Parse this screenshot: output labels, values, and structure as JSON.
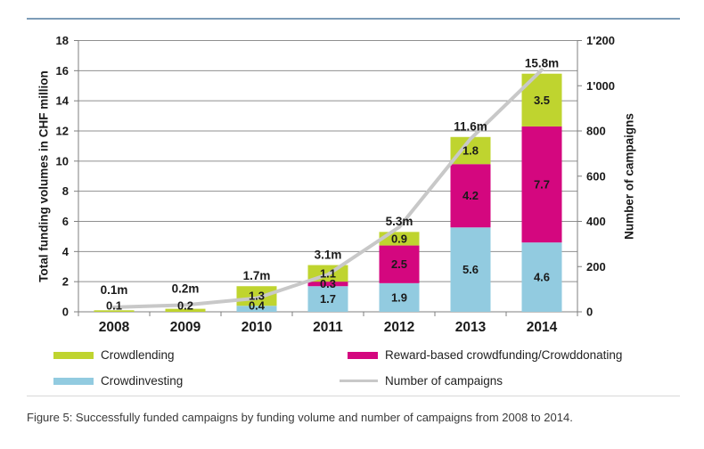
{
  "chart_data": {
    "type": "bar",
    "subtype": "stacked-columns-with-line-overlay",
    "categories": [
      "2008",
      "2009",
      "2010",
      "2011",
      "2012",
      "2013",
      "2014"
    ],
    "series": [
      {
        "name": "Crowdinvesting",
        "color": "#92cbe0",
        "values": [
          0,
          0,
          0.4,
          1.7,
          1.9,
          5.6,
          4.6
        ]
      },
      {
        "name": "Reward-based crowdfunding/Crowddonating",
        "color": "#d4077f",
        "values": [
          0,
          0,
          0,
          0.3,
          2.5,
          4.2,
          7.7
        ]
      },
      {
        "name": "Crowdlending",
        "color": "#bfd42f",
        "values": [
          0.1,
          0.2,
          1.3,
          1.1,
          0.9,
          1.8,
          3.5
        ]
      }
    ],
    "total_labels": [
      "0.1m",
      "0.2m",
      "1.7m",
      "3.1m",
      "5.3m",
      "11.6m",
      "15.8m"
    ],
    "line_series": {
      "name": "Number of campaigns",
      "color": "#c8c8c8",
      "axis": "right",
      "values": [
        20,
        30,
        60,
        165,
        375,
        765,
        1070
      ],
      "note": "values estimated from line position; not labeled in chart"
    },
    "left_axis": {
      "title": "Total funding volumes in CHF million",
      "min": 0,
      "max": 18,
      "tick_step": 2,
      "tick_labels": [
        "0",
        "2",
        "4",
        "6",
        "8",
        "10",
        "12",
        "14",
        "16",
        "18"
      ]
    },
    "right_axis": {
      "title": "Number of campaigns",
      "min": 0,
      "max": 1200,
      "tick_step": 200,
      "tick_labels": [
        "0",
        "200",
        "400",
        "600",
        "800",
        "1'000",
        "1'200"
      ]
    },
    "grid": true,
    "legend_position": "bottom"
  },
  "legend": {
    "items": [
      {
        "label": "Crowdlending",
        "color": "#bfd42f",
        "swatch": "bar"
      },
      {
        "label": "Reward-based crowdfunding/Crowddonating",
        "color": "#d4077f",
        "swatch": "bar"
      },
      {
        "label": "Crowdinvesting",
        "color": "#92cbe0",
        "swatch": "bar"
      },
      {
        "label": "Number of campaigns",
        "color": "#c8c8c8",
        "swatch": "line"
      }
    ]
  },
  "caption": "Figure 5: Successfully funded campaigns by funding volume and number of campaigns from 2008 to 2014.",
  "colors": {
    "background": "#ffffff",
    "top_rule": "#7d9cb8",
    "separator": "#d8d8d8",
    "gridline": "#8f8f8f",
    "axis": "#7f7f7f",
    "label_text": "#1a1a1a",
    "caption_text": "#3a3a3a"
  }
}
